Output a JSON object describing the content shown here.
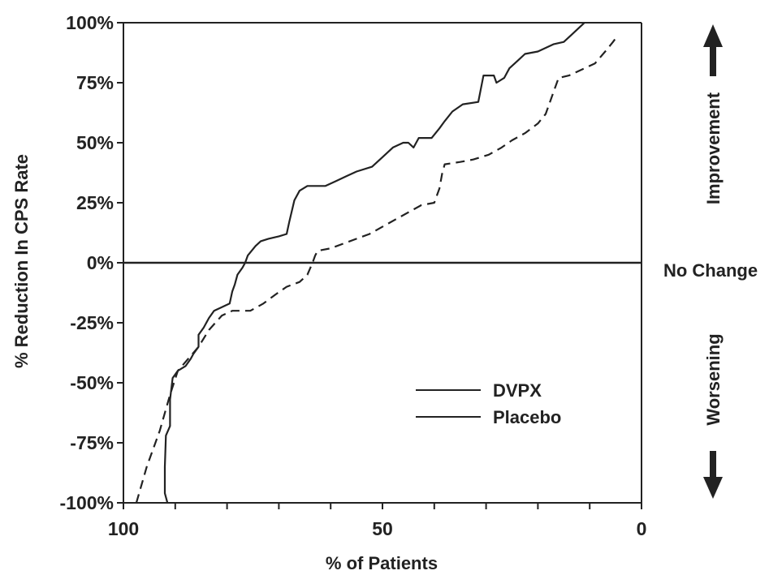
{
  "chart_data": {
    "type": "line",
    "title": "",
    "xlabel": "% of Patients",
    "ylabel": "% Reduction In CPS Rate",
    "xlim": [
      100,
      0
    ],
    "ylim": [
      -100,
      100
    ],
    "x_ticks": [
      100,
      50,
      0
    ],
    "x_tick_labels": [
      "100",
      "50",
      "0"
    ],
    "y_ticks": [
      100,
      75,
      50,
      25,
      0,
      -25,
      -50,
      -75,
      -100
    ],
    "y_tick_labels": [
      "100%",
      "75%",
      "50%",
      "25%",
      "0%",
      "-25%",
      "-50%",
      "-75%",
      "-100%"
    ],
    "reference_line": {
      "y": 0,
      "label": "No Change"
    },
    "side_labels": {
      "top": "Improvement",
      "bottom": "Worsening"
    },
    "grid": false,
    "legend_position": "lower-right",
    "series": [
      {
        "name": "DVPX",
        "style": "solid",
        "color": "#222222",
        "points": [
          [
            91.5,
            -100
          ],
          [
            92,
            -96
          ],
          [
            92,
            -85
          ],
          [
            91.8,
            -72
          ],
          [
            91,
            -68
          ],
          [
            91,
            -57
          ],
          [
            90.5,
            -48
          ],
          [
            89.5,
            -45
          ],
          [
            88,
            -43
          ],
          [
            87,
            -40
          ],
          [
            86.5,
            -38
          ],
          [
            85.5,
            -35
          ],
          [
            85.5,
            -30
          ],
          [
            84.5,
            -27
          ],
          [
            83.5,
            -23
          ],
          [
            82.5,
            -20
          ],
          [
            81.5,
            -19
          ],
          [
            80.5,
            -18
          ],
          [
            79.5,
            -17
          ],
          [
            79,
            -12
          ],
          [
            78.5,
            -9
          ],
          [
            78,
            -5
          ],
          [
            77,
            -2
          ],
          [
            76.5,
            0
          ],
          [
            76,
            3
          ],
          [
            74.5,
            7
          ],
          [
            73.5,
            9
          ],
          [
            72,
            10
          ],
          [
            70,
            11
          ],
          [
            68.5,
            12
          ],
          [
            68,
            17
          ],
          [
            67,
            26
          ],
          [
            66,
            30
          ],
          [
            64.5,
            32
          ],
          [
            63,
            32
          ],
          [
            61,
            32
          ],
          [
            59,
            34
          ],
          [
            57,
            36
          ],
          [
            55,
            38
          ],
          [
            52,
            40
          ],
          [
            50,
            44
          ],
          [
            48,
            48
          ],
          [
            46,
            50
          ],
          [
            45,
            50
          ],
          [
            44,
            48
          ],
          [
            43,
            52
          ],
          [
            41,
            52
          ],
          [
            40.5,
            52
          ],
          [
            39,
            56
          ],
          [
            38,
            59
          ],
          [
            36.5,
            63
          ],
          [
            34.5,
            66
          ],
          [
            31.5,
            67
          ],
          [
            30.5,
            78
          ],
          [
            28.5,
            78
          ],
          [
            28,
            75
          ],
          [
            26.5,
            77
          ],
          [
            25.5,
            81
          ],
          [
            24,
            84
          ],
          [
            22.5,
            87
          ],
          [
            20,
            88
          ],
          [
            17,
            91
          ],
          [
            15,
            92
          ],
          [
            13.5,
            95
          ],
          [
            12,
            98
          ],
          [
            11,
            100
          ],
          [
            10,
            103
          ]
        ]
      },
      {
        "name": "Placebo",
        "style": "dashed",
        "color": "#222222",
        "points": [
          [
            97.5,
            -100
          ],
          [
            95.5,
            -85
          ],
          [
            93,
            -70
          ],
          [
            91,
            -55
          ],
          [
            89.5,
            -45
          ],
          [
            87.5,
            -40
          ],
          [
            85.5,
            -35
          ],
          [
            83.5,
            -28
          ],
          [
            81,
            -22
          ],
          [
            79,
            -20
          ],
          [
            75.5,
            -20
          ],
          [
            73,
            -17
          ],
          [
            70.5,
            -13
          ],
          [
            68.5,
            -10
          ],
          [
            66,
            -8
          ],
          [
            64.5,
            -5
          ],
          [
            63.5,
            0
          ],
          [
            63,
            3
          ],
          [
            62.5,
            5
          ],
          [
            60,
            6
          ],
          [
            57.5,
            8
          ],
          [
            55,
            10
          ],
          [
            52.5,
            12
          ],
          [
            50,
            15
          ],
          [
            47.5,
            18
          ],
          [
            45,
            21
          ],
          [
            42.5,
            24
          ],
          [
            40,
            25
          ],
          [
            39,
            31
          ],
          [
            38.5,
            37
          ],
          [
            38,
            41
          ],
          [
            35,
            42
          ],
          [
            32.5,
            43
          ],
          [
            29.5,
            45
          ],
          [
            27,
            48
          ],
          [
            25,
            51
          ],
          [
            22.5,
            54
          ],
          [
            20,
            58
          ],
          [
            18.5,
            62
          ],
          [
            17,
            71
          ],
          [
            16,
            77
          ],
          [
            14,
            78
          ],
          [
            11,
            81
          ],
          [
            9,
            83
          ],
          [
            7,
            88
          ],
          [
            5.5,
            92
          ],
          [
            4.5,
            95
          ]
        ]
      }
    ]
  }
}
